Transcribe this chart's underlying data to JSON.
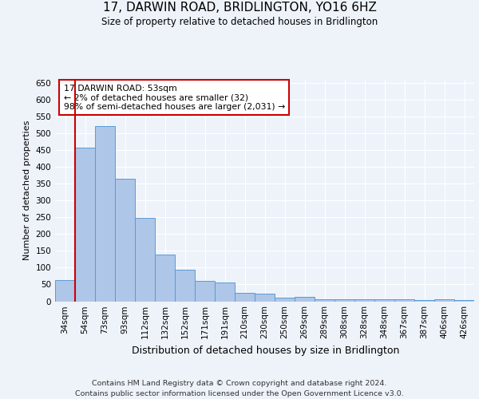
{
  "title": "17, DARWIN ROAD, BRIDLINGTON, YO16 6HZ",
  "subtitle": "Size of property relative to detached houses in Bridlington",
  "xlabel": "Distribution of detached houses by size in Bridlington",
  "ylabel": "Number of detached properties",
  "categories": [
    "34sqm",
    "54sqm",
    "73sqm",
    "93sqm",
    "112sqm",
    "132sqm",
    "152sqm",
    "171sqm",
    "191sqm",
    "210sqm",
    "230sqm",
    "250sqm",
    "269sqm",
    "289sqm",
    "308sqm",
    "328sqm",
    "348sqm",
    "367sqm",
    "387sqm",
    "406sqm",
    "426sqm"
  ],
  "values": [
    62,
    457,
    523,
    366,
    248,
    140,
    93,
    60,
    55,
    25,
    23,
    10,
    12,
    7,
    7,
    6,
    5,
    5,
    4,
    5,
    4
  ],
  "bar_color": "#aec6e8",
  "bar_edge_color": "#5b9bd5",
  "ylim_max": 660,
  "yticks": [
    0,
    50,
    100,
    150,
    200,
    250,
    300,
    350,
    400,
    450,
    500,
    550,
    600,
    650
  ],
  "annotation_title": "17 DARWIN ROAD: 53sqm",
  "annotation_line1": "← 2% of detached houses are smaller (32)",
  "annotation_line2": "98% of semi-detached houses are larger (2,031) →",
  "annotation_box_edge": "#cc0000",
  "vertical_line_color": "#cc0000",
  "background_color": "#eef3fa",
  "grid_color": "#ffffff",
  "footer1": "Contains HM Land Registry data © Crown copyright and database right 2024.",
  "footer2": "Contains public sector information licensed under the Open Government Licence v3.0."
}
